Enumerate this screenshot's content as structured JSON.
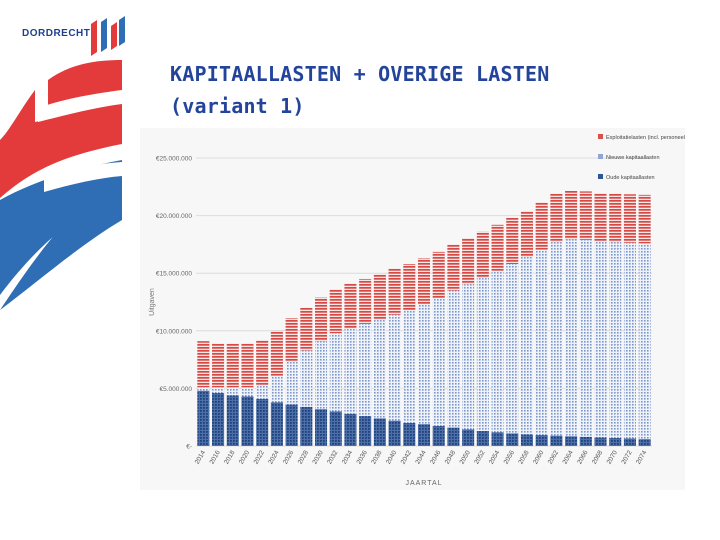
{
  "logo": {
    "text": "DORDRECHT"
  },
  "slide": {
    "title_line1": "KAPITAALLASTEN + OVERIGE LASTEN",
    "title_line2": "(variant 1)"
  },
  "colors": {
    "title": "#23449a",
    "art_red": "#e33b3b",
    "art_blue": "#2f6db5",
    "oude": "#2e5694",
    "nieuwe": "#8fa6d4",
    "exploitatie": "#d9504c"
  },
  "chart_data": {
    "type": "bar",
    "stacked": true,
    "xlabel": "JAARTAL",
    "ylabel": "Uitgaven",
    "ylim": [
      0,
      25000000
    ],
    "yticks": [
      "€-",
      "€5.000.000",
      "€10.000.000",
      "€15.000.000",
      "€20.000.000",
      "€25.000.000"
    ],
    "legend_position": "top-right",
    "x": [
      2014,
      2016,
      2018,
      2020,
      2022,
      2024,
      2026,
      2028,
      2030,
      2032,
      2034,
      2036,
      2038,
      2040,
      2042,
      2044,
      2046,
      2048,
      2050,
      2052,
      2054,
      2056,
      2058,
      2060,
      2062,
      2064,
      2066,
      2068,
      2070,
      2072,
      2074
    ],
    "series": [
      {
        "name": "Oude kapitaallasten",
        "color": "#2e5694",
        "values": [
          4800000,
          4600000,
          4400000,
          4300000,
          4100000,
          3800000,
          3600000,
          3400000,
          3200000,
          3000000,
          2800000,
          2600000,
          2400000,
          2200000,
          2000000,
          1900000,
          1750000,
          1600000,
          1450000,
          1300000,
          1200000,
          1100000,
          1000000,
          950000,
          900000,
          850000,
          800000,
          750000,
          700000,
          650000,
          600000
        ]
      },
      {
        "name": "Nieuwe kapitaallasten",
        "color": "#8fa6d4",
        "values": [
          300000,
          500000,
          700000,
          800000,
          1200000,
          2300000,
          3700000,
          4900000,
          5900000,
          6800000,
          7400000,
          8000000,
          8600000,
          9200000,
          9800000,
          10400000,
          11100000,
          11900000,
          12600000,
          13300000,
          14000000,
          14700000,
          15400000,
          16100000,
          16800000,
          17100000,
          17100000,
          17000000,
          17000000,
          17000000,
          17000000
        ]
      },
      {
        "name": "Exploitatielasten (incl. personeel)",
        "color": "#d9504c",
        "values": [
          4000000,
          3800000,
          3800000,
          3800000,
          3900000,
          3900000,
          3800000,
          3700000,
          3800000,
          3800000,
          3900000,
          3900000,
          3900000,
          4000000,
          4000000,
          4000000,
          4000000,
          4000000,
          4000000,
          4000000,
          4000000,
          4000000,
          4000000,
          4100000,
          4200000,
          4200000,
          4200000,
          4200000,
          4200000,
          4200000,
          4200000
        ]
      }
    ]
  }
}
